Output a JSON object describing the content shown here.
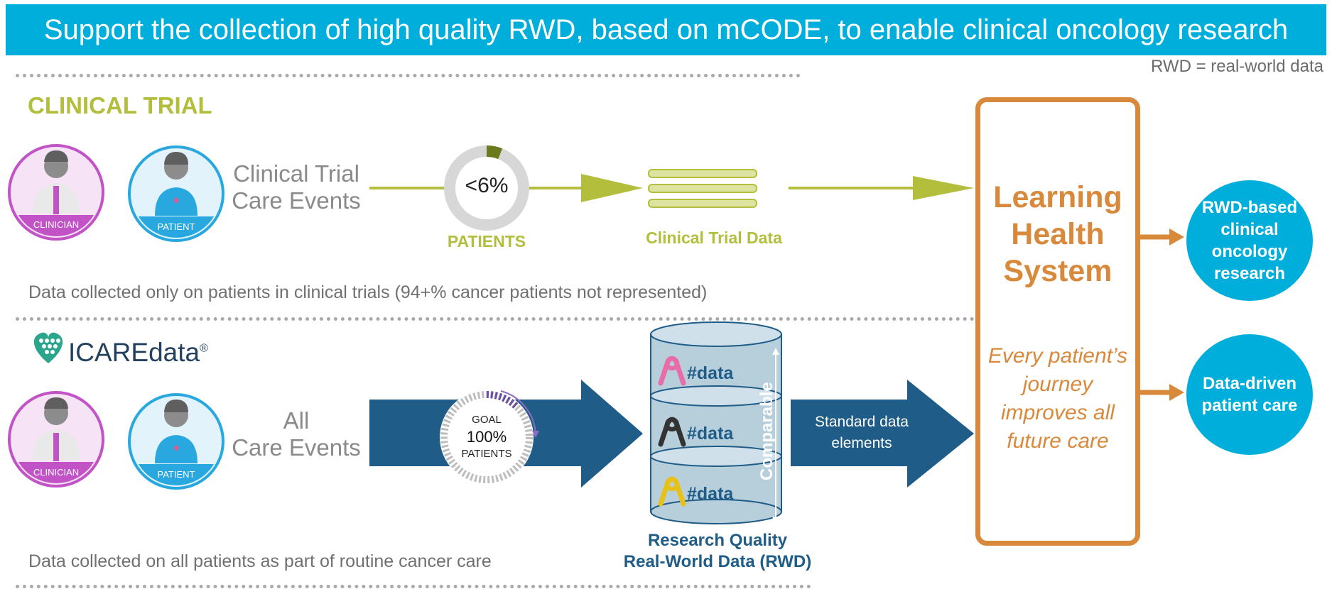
{
  "banner": {
    "title": "Support the collection of high quality RWD, based on mCODE, to enable clinical oncology research"
  },
  "note": "RWD = real-world data",
  "clinical_trial": {
    "section_title": "CLINICAL TRIAL",
    "clinician_label": "CLINICIAN",
    "patient_label": "PATIENT",
    "events_line1": "Clinical Trial",
    "events_line2": "Care Events",
    "donut_value": "<6%",
    "donut_fraction": 0.06,
    "donut_label": "PATIENTS",
    "data_label": "Clinical Trial Data",
    "caption": "Data collected only on patients in clinical trials (94+% cancer patients not represented)"
  },
  "icare": {
    "brand_name": "ICAREdata",
    "brand_mark": "®",
    "clinician_label": "CLINICIAN",
    "patient_label": "PATIENT",
    "events_line1": "All",
    "events_line2": "Care Events",
    "goal_label": "GOAL",
    "goal_value": "100%",
    "goal_sublabel": "PATIENTS",
    "db_rows": [
      "#data",
      "#data",
      "#data"
    ],
    "comparable_label": "Comparable",
    "std_line1": "Standard data",
    "std_line2": "elements",
    "rq_line1": "Research Quality",
    "rq_line2": "Real-World Data (RWD)",
    "caption": "Data collected on all patients as part of routine cancer care"
  },
  "lhs": {
    "title_line1": "Learning",
    "title_line2": "Health",
    "title_line3": "System",
    "sub_line1": "Every patient’s",
    "sub_line2": "journey",
    "sub_line3": "improves all",
    "sub_line4": "future care"
  },
  "outputs": {
    "research_line1": "RWD-based",
    "research_line2": "clinical",
    "research_line3": "oncology",
    "research_line4": "research",
    "care_line1": "Data-driven",
    "care_line2": "patient care"
  },
  "colors": {
    "banner": "#00AEDB",
    "olive": "#B3BE3C",
    "navy": "#1F5C87",
    "orange": "#D9893B",
    "clinician": "#C153C6",
    "patient": "#29A8E0"
  }
}
